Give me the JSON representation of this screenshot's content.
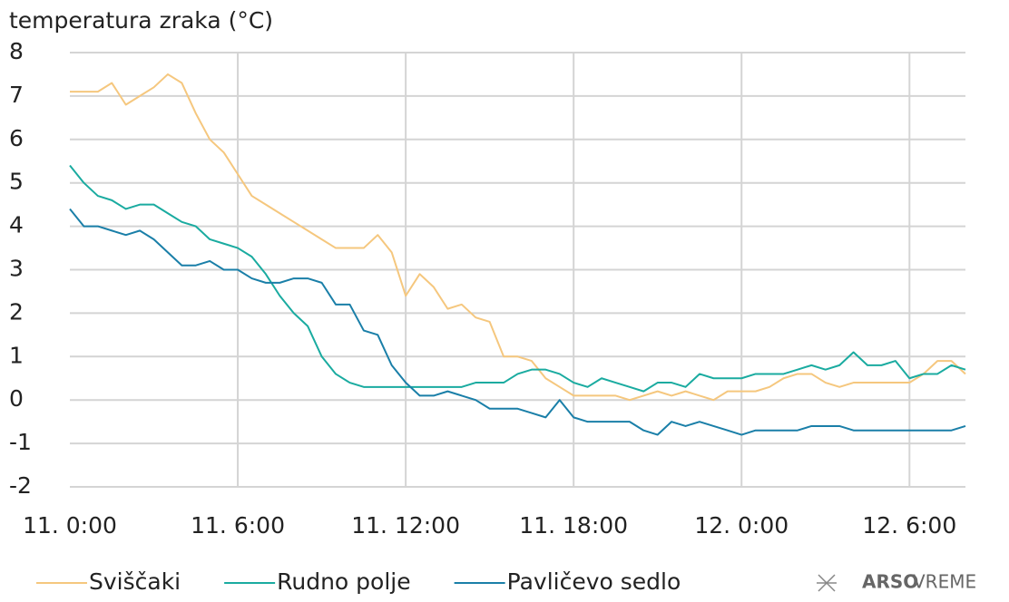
{
  "chart_data": {
    "type": "line",
    "y_axis_label": "temperatura zraka (°C)",
    "x": [
      0,
      0.5,
      1,
      1.5,
      2,
      2.5,
      3,
      3.5,
      4,
      4.5,
      5,
      5.5,
      6,
      6.5,
      7,
      7.5,
      8,
      8.5,
      9,
      9.5,
      10,
      10.5,
      11,
      11.5,
      12,
      12.5,
      13,
      13.5,
      14,
      14.5,
      15,
      15.5,
      16,
      16.5,
      17,
      17.5,
      18,
      18.5,
      19,
      19.5,
      20,
      20.5,
      21,
      21.5,
      22,
      22.5,
      23,
      23.5,
      24,
      24.5,
      25,
      25.5,
      26,
      26.5,
      27,
      27.5,
      28,
      28.5,
      29,
      29.5,
      30,
      30.5,
      31,
      31.5,
      32
    ],
    "series": [
      {
        "name": "Sviščaki",
        "color": "#f5c77e",
        "values": [
          7.1,
          7.1,
          7.1,
          7.3,
          6.8,
          7.0,
          7.2,
          7.5,
          7.3,
          6.6,
          6.0,
          5.7,
          5.2,
          4.7,
          4.5,
          4.3,
          4.1,
          3.9,
          3.7,
          3.5,
          3.5,
          3.5,
          3.8,
          3.4,
          2.4,
          2.9,
          2.6,
          2.1,
          2.2,
          1.9,
          1.8,
          1.0,
          1.0,
          0.9,
          0.5,
          0.3,
          0.1,
          0.1,
          0.1,
          0.1,
          0.0,
          0.1,
          0.2,
          0.1,
          0.2,
          0.1,
          0.0,
          0.2,
          0.2,
          0.2,
          0.3,
          0.5,
          0.6,
          0.6,
          0.4,
          0.3,
          0.4,
          0.4,
          0.4,
          0.4,
          0.4,
          0.6,
          0.9,
          0.9,
          0.6
        ]
      },
      {
        "name": "Rudno polje",
        "color": "#1aaba0",
        "values": [
          5.4,
          5.0,
          4.7,
          4.6,
          4.4,
          4.5,
          4.5,
          4.3,
          4.1,
          4.0,
          3.7,
          3.6,
          3.5,
          3.3,
          2.9,
          2.4,
          2.0,
          1.7,
          1.0,
          0.6,
          0.4,
          0.3,
          0.3,
          0.3,
          0.3,
          0.3,
          0.3,
          0.3,
          0.3,
          0.4,
          0.4,
          0.4,
          0.6,
          0.7,
          0.7,
          0.6,
          0.4,
          0.3,
          0.5,
          0.4,
          0.3,
          0.2,
          0.4,
          0.4,
          0.3,
          0.6,
          0.5,
          0.5,
          0.5,
          0.6,
          0.6,
          0.6,
          0.7,
          0.8,
          0.7,
          0.8,
          1.1,
          0.8,
          0.8,
          0.9,
          0.5,
          0.6,
          0.6,
          0.8,
          0.7
        ]
      },
      {
        "name": "Pavličevo sedlo",
        "color": "#1a7fa8",
        "values": [
          4.4,
          4.0,
          4.0,
          3.9,
          3.8,
          3.9,
          3.7,
          3.4,
          3.1,
          3.1,
          3.2,
          3.0,
          3.0,
          2.8,
          2.7,
          2.7,
          2.8,
          2.8,
          2.7,
          2.2,
          2.2,
          1.6,
          1.5,
          0.8,
          0.4,
          0.1,
          0.1,
          0.2,
          0.1,
          0.0,
          -0.2,
          -0.2,
          -0.2,
          -0.3,
          -0.4,
          0.0,
          -0.4,
          -0.5,
          -0.5,
          -0.5,
          -0.5,
          -0.7,
          -0.8,
          -0.5,
          -0.6,
          -0.5,
          -0.6,
          -0.7,
          -0.8,
          -0.7,
          -0.7,
          -0.7,
          -0.7,
          -0.6,
          -0.6,
          -0.6,
          -0.7,
          -0.7,
          -0.7,
          -0.7,
          -0.7,
          -0.7,
          -0.7,
          -0.7,
          -0.6
        ]
      }
    ],
    "xlim": [
      0,
      32
    ],
    "xticks": [
      {
        "value": 0,
        "label": "11. 0:00"
      },
      {
        "value": 6,
        "label": "11. 6:00"
      },
      {
        "value": 12,
        "label": "11. 12:00"
      },
      {
        "value": 18,
        "label": "11. 18:00"
      },
      {
        "value": 24,
        "label": "12. 0:00"
      },
      {
        "value": 30,
        "label": "12. 6:00"
      }
    ],
    "ylim": [
      -2,
      8
    ],
    "yticks": [
      -2,
      -1,
      0,
      1,
      2,
      3,
      4,
      5,
      6,
      7,
      8
    ],
    "grid": true,
    "legend": "bottom",
    "brand": {
      "strong": "ARSO",
      "light": "VREME"
    }
  }
}
